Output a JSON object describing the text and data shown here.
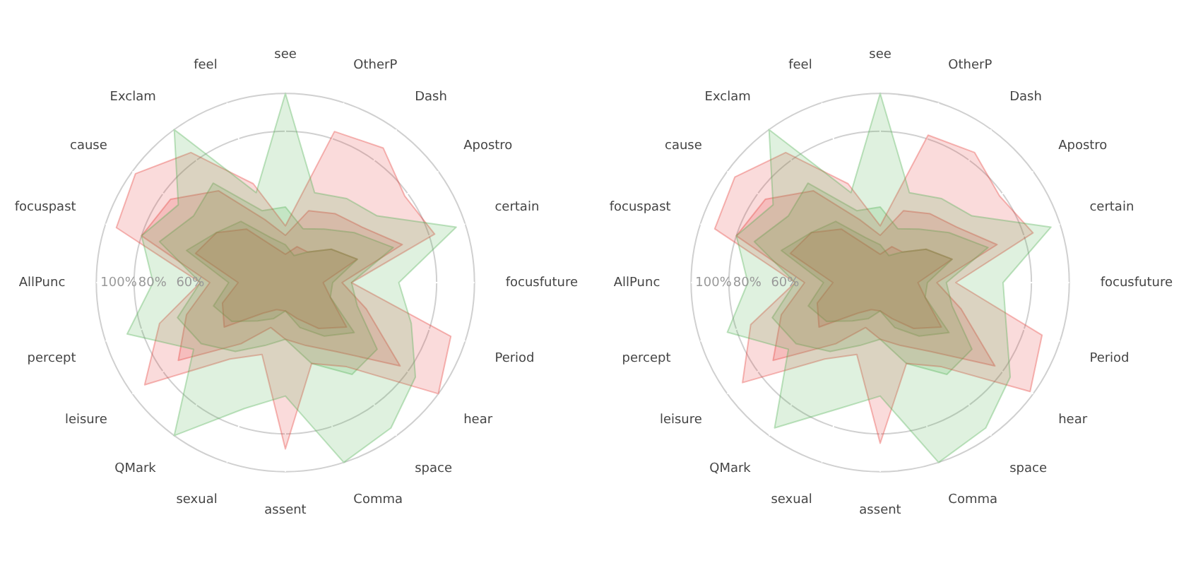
{
  "chart_data": [
    {
      "type": "radar",
      "categories": [
        "see",
        "OtherP",
        "Dash",
        "Apostro",
        "certain",
        "focusfuture",
        "Period",
        "hear",
        "space",
        "Comma",
        "assent",
        "sexual",
        "QMark",
        "leisure",
        "percept",
        "AllPunc",
        "focuspast",
        "cause",
        "Exclam",
        "feel"
      ],
      "ylim": [
        0,
        100
      ],
      "yticks": [
        {
          "value": 60,
          "label": "60%"
        },
        {
          "value": 80,
          "label": "80%"
        },
        {
          "value": 100,
          "label": "100%"
        }
      ],
      "grid": true,
      "marker": "none",
      "series": [
        {
          "color": "#4caf50",
          "values": [
            100,
            50,
            55,
            60,
            95,
            60,
            70,
            85,
            95,
            100,
            60,
            70,
            100,
            60,
            88,
            70,
            80,
            70,
            100,
            50
          ]
        },
        {
          "color": "#e53935",
          "values": [
            30,
            84,
            88,
            78,
            83,
            35,
            92,
            100,
            55,
            45,
            88,
            40,
            50,
            92,
            70,
            45,
            94,
            98,
            85,
            55
          ]
        },
        {
          "color": "#4caf50",
          "values": [
            40,
            30,
            35,
            45,
            60,
            35,
            40,
            60,
            60,
            45,
            30,
            35,
            45,
            55,
            60,
            45,
            70,
            60,
            65,
            40
          ]
        },
        {
          "color": "#e53935",
          "values": [
            25,
            40,
            45,
            50,
            65,
            30,
            45,
            75,
            45,
            35,
            30,
            25,
            40,
            70,
            55,
            40,
            80,
            75,
            60,
            35
          ]
        },
        {
          "color": "#4caf50",
          "values": [
            20,
            15,
            20,
            30,
            40,
            25,
            25,
            45,
            35,
            25,
            15,
            20,
            25,
            35,
            40,
            30,
            55,
            45,
            40,
            25
          ]
        },
        {
          "color": "#e53935",
          "values": [
            15,
            20,
            20,
            30,
            40,
            20,
            25,
            40,
            30,
            20,
            15,
            15,
            20,
            40,
            35,
            25,
            50,
            45,
            35,
            20
          ]
        }
      ]
    },
    {
      "type": "radar",
      "categories": [
        "see",
        "OtherP",
        "Dash",
        "Apostro",
        "certain",
        "focusfuture",
        "Period",
        "hear",
        "space",
        "Comma",
        "assent",
        "sexual",
        "QMark",
        "leisure",
        "percept",
        "AllPunc",
        "focuspast",
        "cause",
        "Exclam",
        "feel"
      ],
      "ylim": [
        0,
        100
      ],
      "yticks": [
        {
          "value": 60,
          "label": "60%"
        },
        {
          "value": 80,
          "label": "80%"
        },
        {
          "value": 100,
          "label": "100%"
        }
      ],
      "grid": true,
      "marker": "none",
      "series": [
        {
          "color": "#4caf50",
          "values": [
            100,
            50,
            55,
            60,
            95,
            65,
            70,
            85,
            95,
            100,
            60,
            70,
            95,
            60,
            85,
            70,
            80,
            70,
            100,
            50
          ]
        },
        {
          "color": "#e53935",
          "values": [
            30,
            82,
            85,
            78,
            85,
            40,
            90,
            98,
            55,
            45,
            85,
            40,
            50,
            90,
            72,
            45,
            92,
            95,
            85,
            55
          ]
        },
        {
          "color": "#4caf50",
          "values": [
            40,
            30,
            35,
            45,
            60,
            35,
            40,
            60,
            60,
            45,
            30,
            35,
            45,
            55,
            60,
            45,
            70,
            60,
            65,
            40
          ]
        },
        {
          "color": "#e53935",
          "values": [
            25,
            40,
            45,
            50,
            65,
            30,
            45,
            75,
            45,
            35,
            30,
            25,
            40,
            70,
            55,
            40,
            80,
            75,
            60,
            35
          ]
        },
        {
          "color": "#4caf50",
          "values": [
            20,
            15,
            20,
            30,
            40,
            25,
            25,
            45,
            35,
            25,
            15,
            20,
            25,
            35,
            40,
            30,
            55,
            45,
            40,
            25
          ]
        },
        {
          "color": "#e53935",
          "values": [
            15,
            20,
            20,
            30,
            40,
            20,
            25,
            40,
            30,
            20,
            15,
            15,
            20,
            40,
            35,
            25,
            50,
            45,
            35,
            20
          ]
        }
      ]
    }
  ]
}
